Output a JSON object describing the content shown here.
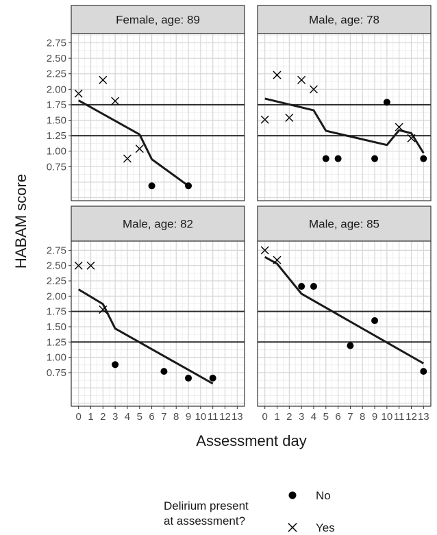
{
  "chart_data": {
    "type": "scatter",
    "facets_layout": "2x2",
    "xlabel": "Assessment day",
    "ylabel": "HABAM score",
    "xlim": [
      -0.6,
      13.6
    ],
    "ylim": [
      0.2,
      2.9
    ],
    "x_ticks": [
      0,
      1,
      2,
      3,
      4,
      5,
      6,
      7,
      8,
      9,
      10,
      11,
      12,
      13
    ],
    "y_ticks": [
      0.75,
      1.0,
      1.25,
      1.5,
      1.75,
      2.0,
      2.25,
      2.5,
      2.75
    ],
    "y_tick_labels": [
      "0.75",
      "1.00",
      "1.25",
      "1.50",
      "1.75",
      "2.00",
      "2.25",
      "2.50",
      "2.75"
    ],
    "reference_lines": [
      1.25,
      1.75
    ],
    "grid": true,
    "legend": {
      "title_lines": [
        "Delirium present",
        "at assessment?"
      ],
      "position": "bottom",
      "entries": [
        {
          "label": "No",
          "marker": "circle"
        },
        {
          "label": "Yes",
          "marker": "cross"
        }
      ]
    },
    "panels": [
      {
        "title": "Female, age: 89",
        "points": [
          {
            "x": 0,
            "y": 1.93,
            "delirium": "Yes"
          },
          {
            "x": 2,
            "y": 2.15,
            "delirium": "Yes"
          },
          {
            "x": 3,
            "y": 1.81,
            "delirium": "Yes"
          },
          {
            "x": 4,
            "y": 0.88,
            "delirium": "Yes"
          },
          {
            "x": 5,
            "y": 1.04,
            "delirium": "Yes"
          },
          {
            "x": 6,
            "y": 0.44,
            "delirium": "No"
          },
          {
            "x": 9,
            "y": 0.44,
            "delirium": "No"
          }
        ],
        "trend": [
          [
            0,
            1.82
          ],
          [
            5,
            1.27
          ],
          [
            6,
            0.87
          ],
          [
            9,
            0.44
          ]
        ]
      },
      {
        "title": "Male, age: 78",
        "points": [
          {
            "x": 0,
            "y": 1.51,
            "delirium": "Yes"
          },
          {
            "x": 1,
            "y": 2.23,
            "delirium": "Yes"
          },
          {
            "x": 2,
            "y": 1.54,
            "delirium": "Yes"
          },
          {
            "x": 3,
            "y": 2.15,
            "delirium": "Yes"
          },
          {
            "x": 4,
            "y": 2.0,
            "delirium": "Yes"
          },
          {
            "x": 5,
            "y": 0.88,
            "delirium": "No"
          },
          {
            "x": 6,
            "y": 0.88,
            "delirium": "No"
          },
          {
            "x": 9,
            "y": 0.88,
            "delirium": "No"
          },
          {
            "x": 10,
            "y": 1.79,
            "delirium": "No"
          },
          {
            "x": 11,
            "y": 1.39,
            "delirium": "Yes"
          },
          {
            "x": 12,
            "y": 1.21,
            "delirium": "Yes"
          },
          {
            "x": 13,
            "y": 0.88,
            "delirium": "No"
          }
        ],
        "trend": [
          [
            0,
            1.85
          ],
          [
            4,
            1.66
          ],
          [
            5,
            1.33
          ],
          [
            10,
            1.1
          ],
          [
            11,
            1.34
          ],
          [
            12,
            1.29
          ],
          [
            13,
            0.97
          ]
        ]
      },
      {
        "title": "Male, age: 82",
        "points": [
          {
            "x": 0,
            "y": 2.5,
            "delirium": "Yes"
          },
          {
            "x": 1,
            "y": 2.5,
            "delirium": "Yes"
          },
          {
            "x": 2,
            "y": 1.78,
            "delirium": "Yes"
          },
          {
            "x": 3,
            "y": 0.88,
            "delirium": "No"
          },
          {
            "x": 7,
            "y": 0.77,
            "delirium": "No"
          },
          {
            "x": 9,
            "y": 0.66,
            "delirium": "No"
          },
          {
            "x": 11,
            "y": 0.66,
            "delirium": "No"
          }
        ],
        "trend": [
          [
            0,
            2.11
          ],
          [
            2,
            1.87
          ],
          [
            3,
            1.47
          ],
          [
            11,
            0.57
          ]
        ]
      },
      {
        "title": "Male, age: 85",
        "points": [
          {
            "x": 0,
            "y": 2.75,
            "delirium": "Yes"
          },
          {
            "x": 1,
            "y": 2.59,
            "delirium": "Yes"
          },
          {
            "x": 3,
            "y": 2.16,
            "delirium": "No"
          },
          {
            "x": 4,
            "y": 2.16,
            "delirium": "No"
          },
          {
            "x": 7,
            "y": 1.19,
            "delirium": "No"
          },
          {
            "x": 9,
            "y": 1.6,
            "delirium": "No"
          },
          {
            "x": 13,
            "y": 0.77,
            "delirium": "No"
          }
        ],
        "trend": [
          [
            0,
            2.64
          ],
          [
            1,
            2.53
          ],
          [
            3,
            2.04
          ],
          [
            13,
            0.9
          ]
        ]
      }
    ]
  }
}
